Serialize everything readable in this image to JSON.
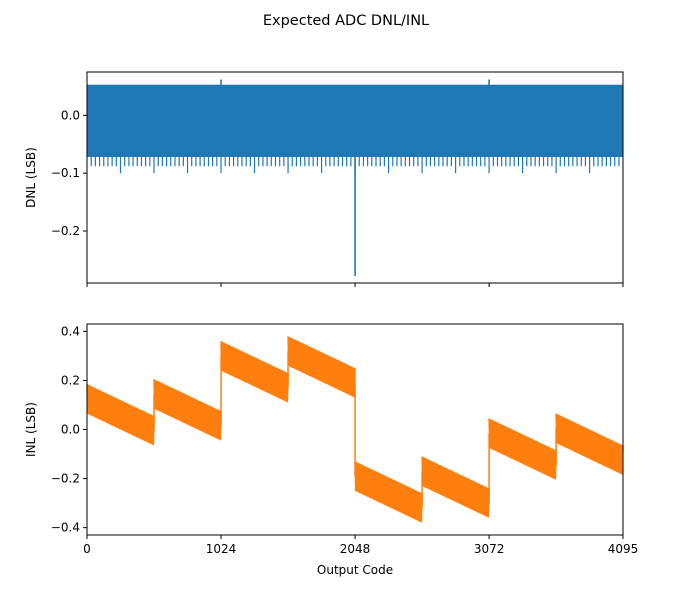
{
  "title": "Expected ADC DNL/INL",
  "chart_data": [
    {
      "type": "line",
      "name": "dnl-panel",
      "ylabel": "DNL (LSB)",
      "xlabel": "",
      "xlim": [
        0,
        4095
      ],
      "ylim": [
        -0.29,
        0.075
      ],
      "yticks": [
        0.0,
        -0.1,
        -0.2
      ],
      "ytick_labels": [
        "0.0",
        "−0.1",
        "−0.2"
      ],
      "xticks": [
        0,
        1024,
        2048,
        3072,
        4095
      ],
      "xtick_labels_shown": false,
      "color": "#1f77b4",
      "series": [
        {
          "description": "DNL per output code",
          "band_upper": 0.053,
          "band_lower": -0.072,
          "periodic_dips": {
            "period": 32,
            "value": -0.088
          },
          "deeper_dips": {
            "period": 256,
            "value": -0.1
          },
          "points": [
            {
              "x": 1024,
              "y": 0.062
            },
            {
              "x": 3072,
              "y": 0.062
            },
            {
              "x": 2048,
              "y": -0.278
            }
          ]
        }
      ]
    },
    {
      "type": "line",
      "name": "inl-panel",
      "ylabel": "INL (LSB)",
      "xlabel": "Output Code",
      "xlim": [
        0,
        4095
      ],
      "ylim": [
        -0.43,
        0.43
      ],
      "yticks": [
        0.4,
        0.2,
        0.0,
        -0.2,
        -0.4
      ],
      "ytick_labels": [
        "0.4",
        "0.2",
        "0.0",
        "−0.2",
        "−0.4"
      ],
      "xticks": [
        0,
        1024,
        2048,
        3072,
        4095
      ],
      "xtick_labels": [
        "0",
        "1024",
        "2048",
        "3072",
        "4095"
      ],
      "color": "#ff7f0e",
      "series": [
        {
          "description": "INL envelope per segment (center line, oscillation half-width)",
          "half_width": 0.06,
          "segments": [
            {
              "x_start": 0,
              "x_end": 512,
              "y_start": 0.125,
              "y_end": -0.005
            },
            {
              "x_start": 512,
              "x_end": 1024,
              "y_start": 0.145,
              "y_end": 0.015
            },
            {
              "x_start": 1024,
              "x_end": 1536,
              "y_start": 0.3,
              "y_end": 0.17
            },
            {
              "x_start": 1536,
              "x_end": 2048,
              "y_start": 0.32,
              "y_end": 0.19
            },
            {
              "x_start": 2048,
              "x_end": 2560,
              "y_start": -0.19,
              "y_end": -0.32
            },
            {
              "x_start": 2560,
              "x_end": 3072,
              "y_start": -0.17,
              "y_end": -0.3
            },
            {
              "x_start": 3072,
              "x_end": 3584,
              "y_start": -0.015,
              "y_end": -0.145
            },
            {
              "x_start": 3584,
              "x_end": 4095,
              "y_start": 0.005,
              "y_end": -0.125
            }
          ]
        }
      ]
    }
  ]
}
